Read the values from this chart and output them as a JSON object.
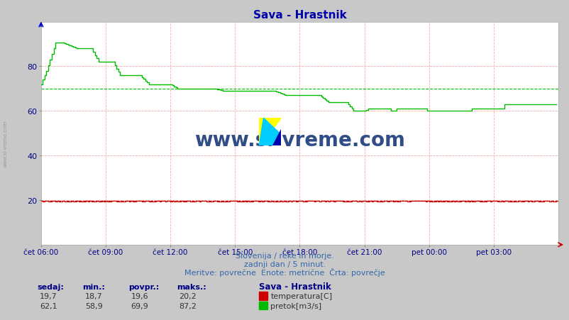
{
  "title": "Sava - Hrastnik",
  "title_color": "#0000aa",
  "bg_color": "#c8c8c8",
  "plot_bg_color": "#ffffff",
  "grid_color": "#ffaaaa",
  "x_tick_labels": [
    "čet 06:00",
    "čet 09:00",
    "čet 12:00",
    "čet 15:00",
    "čet 18:00",
    "čet 21:00",
    "pet 00:00",
    "pet 03:00"
  ],
  "y_ticks": [
    20,
    40,
    60,
    80
  ],
  "ylim": [
    0,
    100
  ],
  "xlim": [
    0,
    288
  ],
  "footer_line1": "Slovenija / reke in morje.",
  "footer_line2": "zadnji dan / 5 minut.",
  "footer_line3": "Meritve: povrečne  Enote: metrične  Črta: povrečje",
  "footer_color": "#3366aa",
  "label_color": "#000088",
  "temp_sedaj": "19,7",
  "temp_min": "18,7",
  "temp_povpr": "19,6",
  "temp_maks": "20,2",
  "flow_sedaj": "62,1",
  "flow_min": "58,9",
  "flow_povpr": "69,9",
  "flow_maks": "87,2",
  "station_label": "Sava - Hrastnik",
  "temp_avg_value": 19.6,
  "flow_avg_value": 69.9,
  "temp_color": "#cc0000",
  "flow_color": "#00bb00",
  "watermark_text": "www.si-vreme.com",
  "watermark_color": "#1a3a7a",
  "sidebar_text": "www.si-vreme.com",
  "sidebar_color": "#888888"
}
